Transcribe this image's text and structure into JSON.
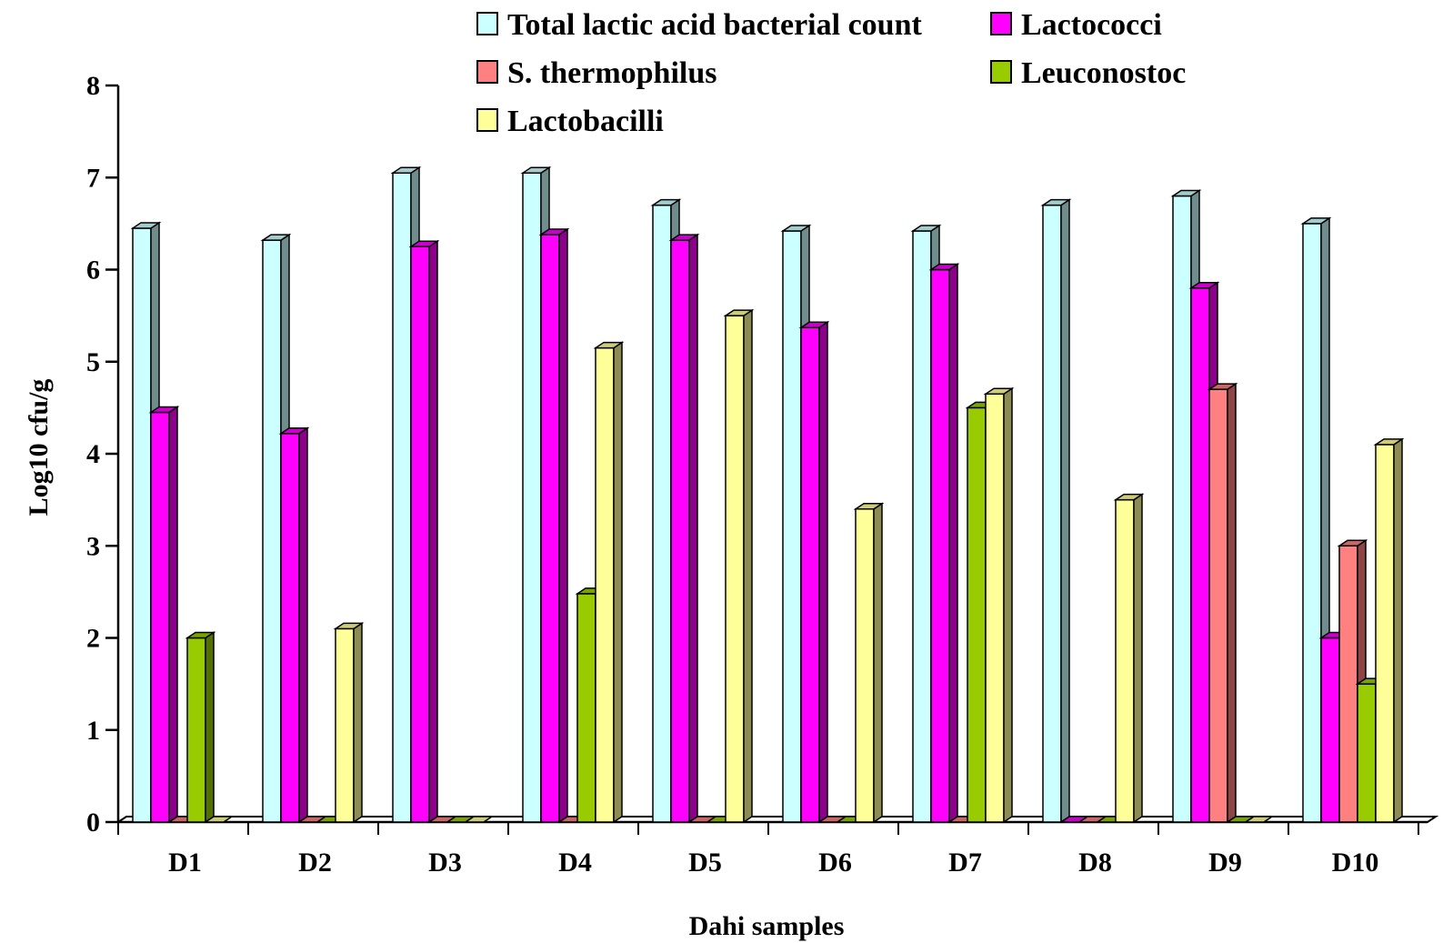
{
  "chart_data": {
    "type": "bar",
    "xlabel": "Dahi samples",
    "ylabel": "Log10 cfu/g",
    "ylim": [
      0,
      8
    ],
    "yticks": [
      0,
      1,
      2,
      3,
      4,
      5,
      6,
      7,
      8
    ],
    "grid": false,
    "legend_position": "top-right",
    "categories": [
      "D1",
      "D2",
      "D3",
      "D4",
      "D5",
      "D6",
      "D7",
      "D8",
      "D9",
      "D10"
    ],
    "series": [
      {
        "name": "Total lactic acid bacterial count",
        "color": "#ccffff",
        "values": [
          6.45,
          6.32,
          7.05,
          7.05,
          6.7,
          6.42,
          6.42,
          6.7,
          6.8,
          6.5
        ]
      },
      {
        "name": "Lactococci",
        "color": "#ff00ff",
        "values": [
          4.45,
          4.22,
          6.25,
          6.38,
          6.32,
          5.37,
          6.0,
          0,
          5.8,
          2.0
        ]
      },
      {
        "name": "S. thermophilus",
        "color": "#ff8080",
        "values": [
          0,
          0,
          0,
          0,
          0,
          0,
          0,
          0,
          4.7,
          3.0
        ]
      },
      {
        "name": "Leuconostoc",
        "color": "#99cc00",
        "values": [
          2.0,
          0,
          0,
          2.48,
          0,
          0,
          4.5,
          0,
          0,
          1.5
        ]
      },
      {
        "name": "Lactobacilli",
        "color": "#ffff99",
        "values": [
          0,
          2.1,
          0,
          5.15,
          5.5,
          3.4,
          4.65,
          3.5,
          0,
          4.1
        ]
      }
    ]
  }
}
